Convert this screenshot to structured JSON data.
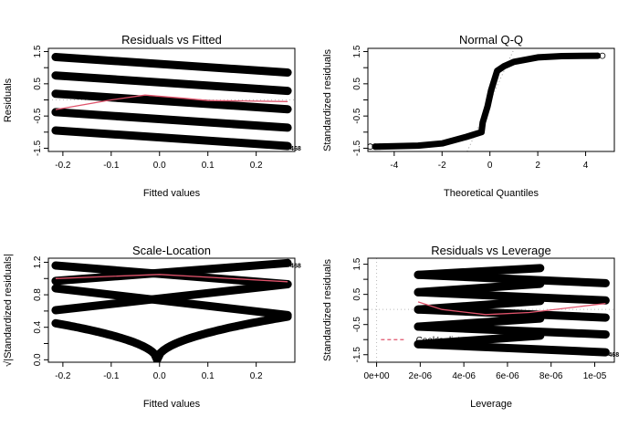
{
  "chart_data": [
    {
      "type": "scatter",
      "title": "Residuals vs Fitted",
      "xlabel": "Fitted values",
      "ylabel": "Residuals",
      "xlim": [
        -0.23,
        0.28
      ],
      "ylim": [
        -1.6,
        1.6
      ],
      "xticks": [
        -0.2,
        -0.1,
        0.0,
        0.1,
        0.2
      ],
      "xtick_labels": [
        "-0.2",
        "-0.1",
        "0.0",
        "0.1",
        "0.2"
      ],
      "yticks": [
        -1.5,
        -1.0,
        -0.5,
        0.0,
        0.5,
        1.0,
        1.5
      ],
      "ytick_labels": [
        "-1.5",
        "",
        "-0.5",
        "",
        "0.5",
        "",
        "1.5"
      ],
      "reference_line": {
        "y": 0,
        "style": "dotted",
        "color": "#bbbbbb"
      },
      "bands": [
        [
          [
            -0.215,
            1.33
          ],
          [
            0.265,
            0.85
          ]
        ],
        [
          [
            -0.215,
            0.76
          ],
          [
            0.265,
            0.28
          ]
        ],
        [
          [
            -0.215,
            0.19
          ],
          [
            0.265,
            -0.29
          ]
        ],
        [
          [
            -0.215,
            -0.38
          ],
          [
            0.265,
            -0.86
          ]
        ],
        [
          [
            -0.215,
            -0.95
          ],
          [
            0.265,
            -1.43
          ]
        ]
      ],
      "smooth": {
        "color": "#DF536B",
        "points": [
          [
            -0.215,
            -0.3
          ],
          [
            -0.1,
            0.0
          ],
          [
            -0.03,
            0.15
          ],
          [
            0.05,
            0.05
          ],
          [
            0.1,
            -0.02
          ],
          [
            0.265,
            -0.05
          ]
        ]
      },
      "annotations": [
        {
          "text": "468",
          "x": 0.265,
          "y": -1.43
        }
      ]
    },
    {
      "type": "scatter",
      "title": "Normal Q-Q",
      "xlabel": "Theoretical Quantiles",
      "ylabel": "Standardized residuals",
      "xlim": [
        -5.1,
        5.2
      ],
      "ylim": [
        -1.6,
        1.6
      ],
      "xticks": [
        -4,
        -2,
        0,
        2,
        4
      ],
      "xtick_labels": [
        "-4",
        "-2",
        "0",
        "2",
        "4"
      ],
      "yticks": [
        -1.5,
        -1.0,
        -0.5,
        0.0,
        0.5,
        1.0,
        1.5
      ],
      "ytick_labels": [
        "-1.5",
        "",
        "-0.5",
        "",
        "0.5",
        "",
        "1.5"
      ],
      "reference_line": {
        "points": [
          [
            -0.95,
            -1.6
          ],
          [
            1.05,
            1.65
          ]
        ],
        "style": "dotted",
        "color": "#999999"
      },
      "curve": [
        [
          -4.8,
          -1.45
        ],
        [
          -3,
          -1.42
        ],
        [
          -2,
          -1.35
        ],
        [
          -1,
          -1.15
        ],
        [
          -0.35,
          -1.0
        ],
        [
          -0.3,
          -0.7
        ],
        [
          -0.1,
          -0.2
        ],
        [
          0.05,
          0.3
        ],
        [
          0.3,
          0.9
        ],
        [
          0.6,
          1.05
        ],
        [
          1,
          1.18
        ],
        [
          2,
          1.32
        ],
        [
          3,
          1.36
        ],
        [
          4.5,
          1.37
        ]
      ],
      "open_points": [
        [
          4.5,
          1.37
        ],
        [
          4.7,
          1.37
        ],
        [
          -4.6,
          -1.45
        ],
        [
          -4.8,
          -1.45
        ],
        [
          -5.0,
          -1.45
        ]
      ]
    },
    {
      "type": "scatter",
      "title": "Scale-Location",
      "xlabel": "Fitted values",
      "ylabel": "√|Standardized residuals|",
      "xlim": [
        -0.23,
        0.28
      ],
      "ylim": [
        -0.03,
        1.25
      ],
      "xticks": [
        -0.2,
        -0.1,
        0.0,
        0.1,
        0.2
      ],
      "xtick_labels": [
        "-0.2",
        "-0.1",
        "0.0",
        "0.1",
        "0.2"
      ],
      "yticks": [
        0.0,
        0.2,
        0.4,
        0.6,
        0.8,
        1.0,
        1.2
      ],
      "ytick_labels": [
        "0.0",
        "",
        "0.4",
        "",
        "0.8",
        "",
        "1.2"
      ],
      "bands": [
        [
          [
            -0.215,
            1.16
          ],
          [
            0.265,
            0.93
          ]
        ],
        [
          [
            -0.215,
            0.97
          ],
          [
            0.265,
            1.19
          ]
        ],
        [
          [
            -0.215,
            0.88
          ],
          [
            0.265,
            0.55
          ]
        ],
        [
          [
            -0.215,
            0.61
          ],
          [
            0.265,
            0.93
          ]
        ]
      ],
      "v_curve": {
        "center": -0.005,
        "left": [
          -0.215,
          0.45
        ],
        "right": [
          0.265,
          0.53
        ]
      },
      "smooth": {
        "color": "#DF536B",
        "points": [
          [
            -0.215,
            1.0
          ],
          [
            0.0,
            1.05
          ],
          [
            0.265,
            0.96
          ]
        ]
      },
      "annotations": [
        {
          "text": "468",
          "x": 0.265,
          "y": 1.19
        }
      ]
    },
    {
      "type": "scatter",
      "title": "Residuals vs Leverage",
      "xlabel": "Leverage",
      "ylabel": "Standardized residuals",
      "xlim": [
        -4e-07,
        1.09e-05
      ],
      "ylim": [
        -1.75,
        1.7
      ],
      "xticks": [
        0,
        2e-06,
        4e-06,
        6e-06,
        8e-06,
        1e-05
      ],
      "xtick_labels": [
        "0e+00",
        "2e-06",
        "4e-06",
        "6e-06",
        "8e-06",
        "1e-05"
      ],
      "yticks": [
        -1.5,
        -1.0,
        -0.5,
        0.0,
        0.5,
        1.0,
        1.5
      ],
      "ytick_labels": [
        "-1.5",
        "",
        "-0.5",
        "",
        "0.5",
        "",
        "1.5"
      ],
      "bands": [
        [
          [
            1.9e-06,
            1.15
          ],
          [
            7.5e-06,
            1.37
          ]
        ],
        [
          [
            1.9e-06,
            1.15
          ],
          [
            1.05e-05,
            0.87
          ]
        ],
        [
          [
            1.9e-06,
            0.57
          ],
          [
            7.5e-06,
            0.85
          ]
        ],
        [
          [
            1.9e-06,
            0.57
          ],
          [
            1.05e-05,
            0.3
          ]
        ],
        [
          [
            1.9e-06,
            0.0
          ],
          [
            7.5e-06,
            0.28
          ]
        ],
        [
          [
            1.9e-06,
            0.0
          ],
          [
            1.05e-05,
            -0.27
          ]
        ],
        [
          [
            1.9e-06,
            -0.57
          ],
          [
            7.5e-06,
            -0.3
          ]
        ],
        [
          [
            1.9e-06,
            -0.57
          ],
          [
            1.05e-05,
            -0.83
          ]
        ],
        [
          [
            1.9e-06,
            -1.15
          ],
          [
            7.5e-06,
            -0.87
          ]
        ],
        [
          [
            1.9e-06,
            -1.15
          ],
          [
            1.05e-05,
            -1.42
          ]
        ]
      ],
      "smooth": {
        "color": "#DF536B",
        "points": [
          [
            1.9e-06,
            0.25
          ],
          [
            3e-06,
            0.0
          ],
          [
            5e-06,
            -0.17
          ],
          [
            7e-06,
            -0.1
          ],
          [
            1.05e-05,
            0.2
          ]
        ]
      },
      "legend": {
        "label": "Cook's distance",
        "color": "#DF536B",
        "style": "dashed",
        "y": -1.0
      },
      "annotations": [
        {
          "text": "468",
          "x": 1.05e-05,
          "y": -1.42
        }
      ]
    }
  ]
}
